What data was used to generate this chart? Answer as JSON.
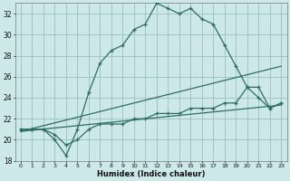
{
  "xlabel": "Humidex (Indice chaleur)",
  "bg_color": "#cde8e8",
  "grid_color": "#9bbfbf",
  "line_color": "#2e6e62",
  "xlim": [
    -0.5,
    23.5
  ],
  "ylim": [
    18,
    33
  ],
  "xticks": [
    0,
    1,
    2,
    3,
    4,
    5,
    6,
    7,
    8,
    9,
    10,
    11,
    12,
    13,
    14,
    15,
    16,
    17,
    18,
    19,
    20,
    21,
    22,
    23
  ],
  "yticks": [
    18,
    20,
    22,
    24,
    26,
    28,
    30,
    32
  ],
  "line1_x": [
    0,
    1,
    2,
    3,
    4,
    5,
    6,
    7,
    8,
    9,
    10,
    11,
    12,
    13,
    14,
    15,
    16,
    17,
    18,
    19,
    20,
    21,
    22,
    23
  ],
  "line1_y": [
    21,
    21,
    21,
    20,
    18.5,
    21,
    24.5,
    27.3,
    28.5,
    29,
    30.5,
    31,
    33,
    32.5,
    32,
    32.5,
    31.5,
    31,
    29,
    27,
    25,
    24,
    23,
    23.5
  ],
  "line2_x": [
    0,
    1,
    2,
    3,
    4,
    5,
    6,
    7,
    8,
    9,
    10,
    11,
    12,
    13,
    14,
    15,
    16,
    17,
    18,
    19,
    20,
    21,
    22,
    23
  ],
  "line2_y": [
    21,
    21,
    21,
    20.5,
    19.5,
    20,
    21,
    21.5,
    21.5,
    21.5,
    22,
    22,
    22.5,
    22.5,
    22.5,
    23,
    23,
    23,
    23.5,
    23.5,
    25,
    25,
    23,
    23.5
  ],
  "line3_x": [
    0,
    23
  ],
  "line3_y": [
    20.8,
    23.3
  ],
  "line4_x": [
    0,
    23
  ],
  "line4_y": [
    20.8,
    27.0
  ]
}
